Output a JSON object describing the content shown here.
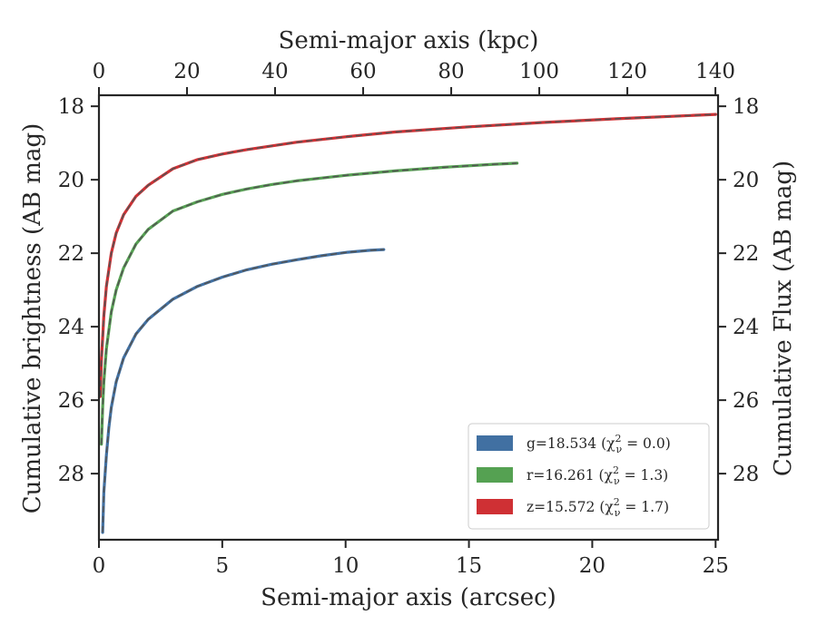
{
  "chart_data": {
    "type": "line",
    "xlabel": "Semi-major axis (arcsec)",
    "x_top_label": "Semi-major axis (kpc)",
    "ylabel": "Cumulative brightness (AB mag)",
    "y_right_label": "Cumulative Flux (AB mag)",
    "xlim": [
      0,
      25.1
    ],
    "ylim": [
      29.8,
      17.7
    ],
    "x_top_lim": [
      0,
      140.6
    ],
    "y_inverted": true,
    "x_ticks": [
      0,
      5,
      10,
      15,
      20,
      25
    ],
    "x_top_ticks": [
      0,
      20,
      40,
      60,
      80,
      100,
      120,
      140
    ],
    "y_ticks": [
      18,
      20,
      22,
      24,
      26,
      28
    ],
    "grid": false,
    "legend_position": "lower-right",
    "model_line_style": "dashed",
    "model_line_color": "#555555",
    "series": [
      {
        "name": "g=18.534 (χ²ν = 0.0)",
        "legend_text": "g=18.534 (χ",
        "legend_sup": "2",
        "legend_sub": "ν",
        "legend_tail": " = 0.0)",
        "color": "#4170a2",
        "x": [
          0.15,
          0.2,
          0.3,
          0.4,
          0.5,
          0.7,
          1.0,
          1.5,
          2.0,
          3.0,
          4.0,
          5.0,
          6.0,
          7.0,
          8.0,
          9.0,
          10.0,
          11.0,
          11.55
        ],
        "y": [
          29.6,
          28.5,
          27.5,
          26.75,
          26.2,
          25.5,
          24.85,
          24.2,
          23.8,
          23.25,
          22.9,
          22.65,
          22.45,
          22.3,
          22.18,
          22.07,
          21.98,
          21.92,
          21.9
        ]
      },
      {
        "name": "r=16.261 (χ²ν = 1.3)",
        "legend_text": "r=16.261 (χ",
        "legend_sup": "2",
        "legend_sub": "ν",
        "legend_tail": " = 1.3)",
        "color": "#55a152",
        "x": [
          0.1,
          0.15,
          0.2,
          0.3,
          0.5,
          0.7,
          1.0,
          1.5,
          2.0,
          3.0,
          4.0,
          5.0,
          6.0,
          7.0,
          8.0,
          10.0,
          12.0,
          14.0,
          16.0,
          16.95
        ],
        "y": [
          27.2,
          26.2,
          25.5,
          24.6,
          23.6,
          23.0,
          22.4,
          21.75,
          21.35,
          20.85,
          20.6,
          20.4,
          20.25,
          20.13,
          20.03,
          19.88,
          19.76,
          19.66,
          19.58,
          19.55
        ]
      },
      {
        "name": "z=15.572 (χ²ν = 1.7)",
        "legend_text": "z=15.572 (χ",
        "legend_sup": "2",
        "legend_sub": "ν",
        "legend_tail": " = 1.7)",
        "color": "#cf3034",
        "x": [
          0.05,
          0.1,
          0.15,
          0.2,
          0.3,
          0.5,
          0.7,
          1.0,
          1.5,
          2.0,
          3.0,
          4.0,
          5.0,
          6.0,
          8.0,
          10.0,
          12.0,
          15.0,
          18.0,
          21.0,
          24.0,
          25.0
        ],
        "y": [
          25.9,
          24.9,
          24.3,
          23.7,
          22.9,
          22.0,
          21.45,
          20.95,
          20.45,
          20.15,
          19.7,
          19.45,
          19.3,
          19.18,
          18.98,
          18.83,
          18.7,
          18.56,
          18.44,
          18.34,
          18.25,
          18.22
        ]
      }
    ]
  }
}
